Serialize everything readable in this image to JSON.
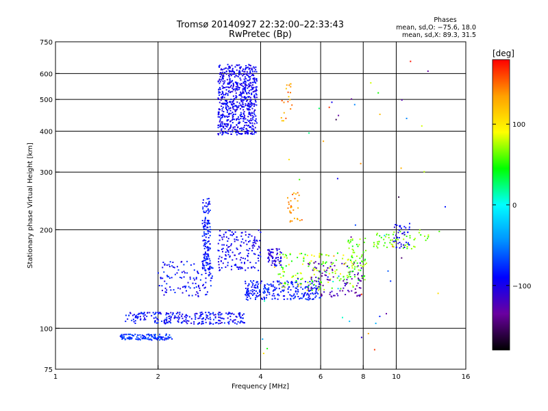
{
  "chart_data": {
    "type": "scatter",
    "title": "Tromsø 20140927 22:32:00–22:33:43",
    "subtitle": "RwPretec (Bp)",
    "xlabel": "Frequency [MHz]",
    "ylabel": "Stationary phase Virtual Height [km]",
    "x_scale": "log2",
    "y_scale": "log",
    "xlim": [
      1,
      16
    ],
    "ylim": [
      75,
      750
    ],
    "x_ticks": [
      {
        "value": 1,
        "label": "1"
      },
      {
        "value": 2,
        "label": "2"
      },
      {
        "value": 4,
        "label": "4"
      },
      {
        "value": 6,
        "label": "6"
      },
      {
        "value": 8,
        "label": "8"
      },
      {
        "value": 10,
        "label": "10"
      },
      {
        "value": 16,
        "label": "16"
      }
    ],
    "x_gridlines": [
      2,
      4,
      6,
      8,
      10
    ],
    "y_ticks": [
      {
        "value": 75,
        "label": "75"
      },
      {
        "value": 100,
        "label": "100"
      },
      {
        "value": 200,
        "label": "200"
      },
      {
        "value": 300,
        "label": "300"
      },
      {
        "value": 400,
        "label": "400"
      },
      {
        "value": 500,
        "label": "500"
      },
      {
        "value": 600,
        "label": "600"
      },
      {
        "value": 750,
        "label": "750"
      }
    ],
    "y_gridlines": [
      100,
      200,
      300,
      400,
      500,
      600
    ],
    "grid": true,
    "legend": {
      "position": "top-right",
      "heading": "Phases",
      "line1": "mean, sd,O: −75.6, 18.0",
      "line2": "mean, sd,X:  89.3, 31.5"
    },
    "colorbar": {
      "label": "[deg]",
      "range": [
        -180,
        180
      ],
      "ticks": [
        {
          "value": 100,
          "label": "100"
        },
        {
          "value": 0,
          "label": "0"
        },
        {
          "value": -100,
          "label": "−100"
        }
      ],
      "colors": [
        "#000000",
        "#6a00a0",
        "#0000ff",
        "#0090ff",
        "#00ffff",
        "#00ff00",
        "#ffff00",
        "#ffa000",
        "#ff0000"
      ]
    },
    "series": [
      {
        "clusters": [
          {
            "x": [
              3.0,
              3.9
            ],
            "y": [
              390,
              640
            ],
            "phase": [
              -110,
              -80
            ],
            "n": 700,
            "shape": "F-layer trace"
          },
          {
            "x": [
              4.6,
              5.0
            ],
            "y": [
              430,
              560
            ],
            "phase": [
              110,
              160
            ],
            "n": 20,
            "shape": "F-layer X trace"
          },
          {
            "x": [
              1.6,
              3.6
            ],
            "y": [
              103,
              112
            ],
            "phase": [
              -110,
              -70
            ],
            "n": 260,
            "shape": "E-layer trace"
          },
          {
            "x": [
              1.55,
              2.2
            ],
            "y": [
              92,
              96
            ],
            "phase": [
              -90,
              -60
            ],
            "n": 120,
            "shape": "lower E trace"
          },
          {
            "x": [
              2.0,
              2.9
            ],
            "y": [
              125,
              160
            ],
            "phase": [
              -110,
              -70
            ],
            "n": 120,
            "shape": "Es cusp"
          },
          {
            "x": [
              2.7,
              2.85
            ],
            "y": [
              150,
              250
            ],
            "phase": [
              -100,
              -70
            ],
            "n": 150,
            "shape": "vertical cusp"
          },
          {
            "x": [
              3.0,
              4.0
            ],
            "y": [
              150,
              200
            ],
            "phase": [
              -110,
              -80
            ],
            "n": 160,
            "shape": "diffuse echoes"
          },
          {
            "x": [
              3.6,
              6.0
            ],
            "y": [
              122,
              140
            ],
            "phase": [
              -100,
              -70
            ],
            "n": 250,
            "shape": "lower F trace"
          },
          {
            "x": [
              4.2,
              4.6
            ],
            "y": [
              155,
              175
            ],
            "phase": [
              -120,
              -90
            ],
            "n": 60,
            "shape": "blob"
          },
          {
            "x": [
              4.5,
              7.5
            ],
            "y": [
              130,
              170
            ],
            "phase": [
              40,
              100
            ],
            "n": 140,
            "shape": "X trace"
          },
          {
            "x": [
              5.5,
              8.0
            ],
            "y": [
              125,
              160
            ],
            "phase": [
              -140,
              -110
            ],
            "n": 100,
            "shape": "O trace"
          },
          {
            "x": [
              7.2,
              8.2
            ],
            "y": [
              140,
              190
            ],
            "phase": [
              40,
              80
            ],
            "n": 60,
            "shape": "green trace"
          },
          {
            "x": [
              8.5,
              12.5
            ],
            "y": [
              175,
              200
            ],
            "phase": [
              50,
              80
            ],
            "n": 60,
            "shape": "high X trace"
          },
          {
            "x": [
              9.8,
              11.0
            ],
            "y": [
              175,
              210
            ],
            "phase": [
              -110,
              -80
            ],
            "n": 40,
            "shape": "high O trace"
          },
          {
            "x": [
              4.8,
              5.3
            ],
            "y": [
              210,
              260
            ],
            "phase": [
              120,
              160
            ],
            "n": 30,
            "shape": "orange blob"
          },
          {
            "x": [
              4.0,
              14.0
            ],
            "y": [
              80,
              700
            ],
            "phase": [
              -180,
              180
            ],
            "n": 60,
            "shape": "scattered noise"
          }
        ]
      }
    ]
  }
}
